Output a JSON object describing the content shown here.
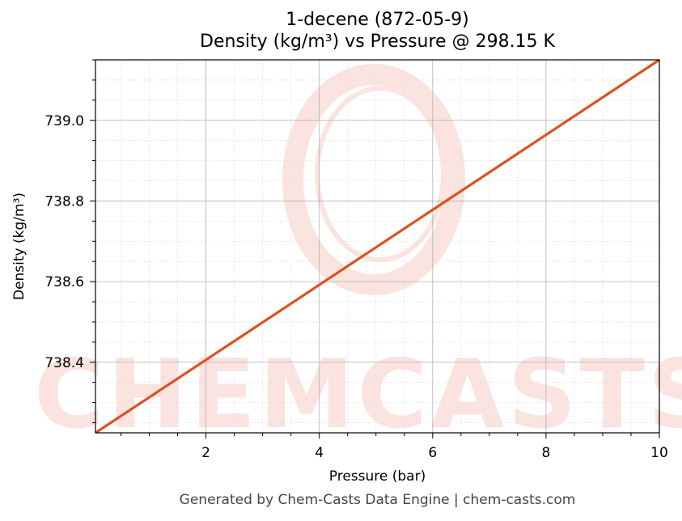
{
  "watermark": {
    "brand": "CHEMCASTS",
    "color": "#f4b0a6"
  },
  "footer": "Generated by Chem-Casts Data Engine | chem-casts.com",
  "chart_data": {
    "type": "line",
    "title": "1-decene (872-05-9)",
    "subtitle": "Density (kg/m³) vs Pressure @ 298.15 K",
    "xlabel": "Pressure (bar)",
    "ylabel": "Density (kg/m³)",
    "xlim": [
      0.05,
      10
    ],
    "ylim": [
      738.225,
      739.15
    ],
    "x_ticks": [
      2,
      4,
      6,
      8,
      10
    ],
    "x_tick_labels": [
      "2",
      "4",
      "6",
      "8",
      "10"
    ],
    "y_ticks": [
      738.4,
      738.6,
      738.8,
      739.0
    ],
    "y_tick_labels": [
      "738.4",
      "738.6",
      "738.8",
      "739.0"
    ],
    "grid": true,
    "series": [
      {
        "color": "#d95321",
        "x": [
          0.05,
          2,
          4,
          6,
          8,
          10
        ],
        "y": [
          738.225,
          738.406,
          738.592,
          738.778,
          738.964,
          739.15
        ]
      }
    ]
  }
}
